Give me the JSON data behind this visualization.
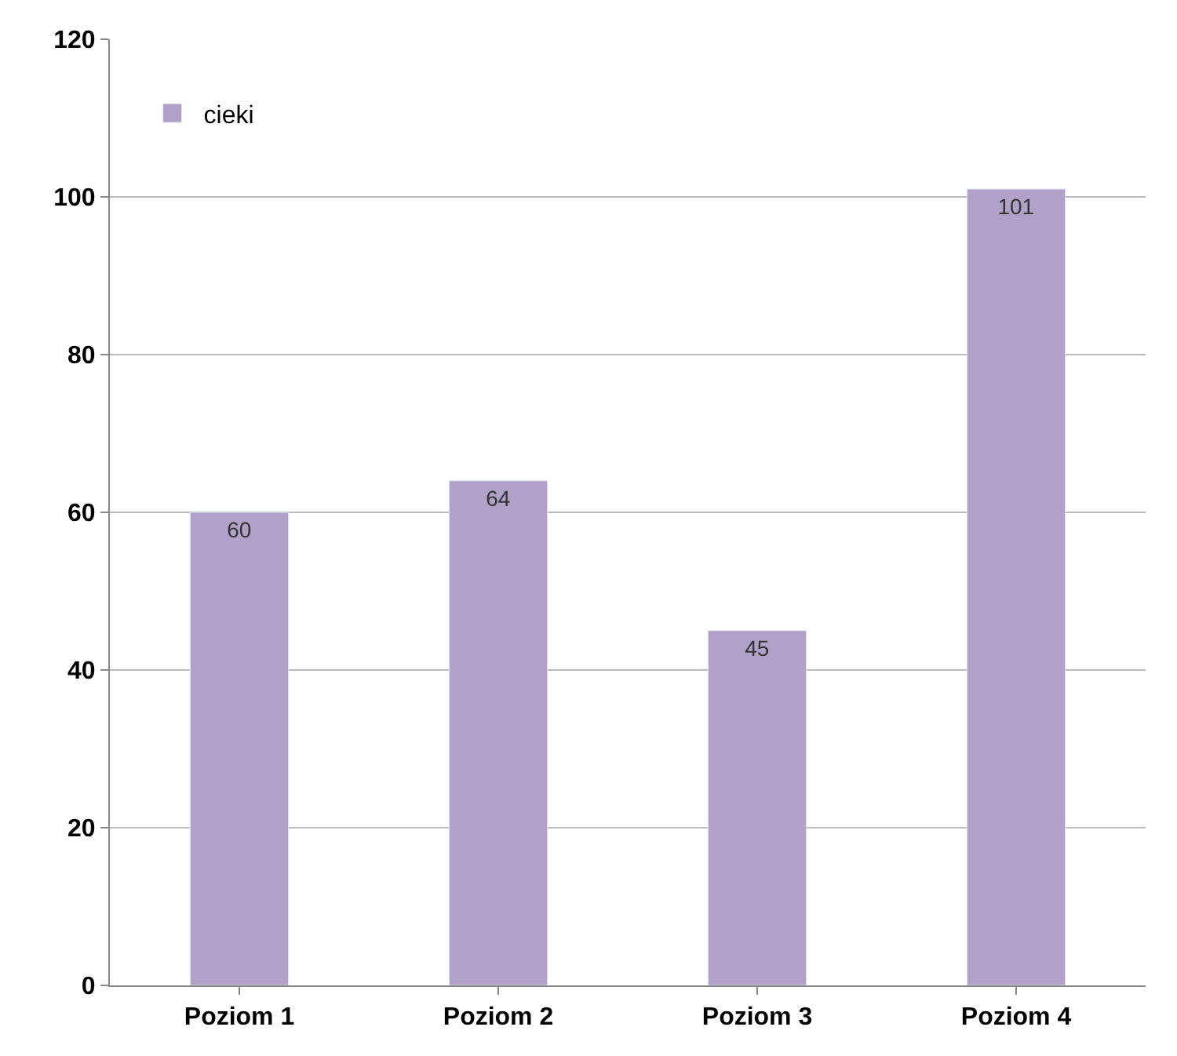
{
  "chart_data": {
    "type": "bar",
    "categories": [
      "Poziom 1",
      "Poziom 2",
      "Poziom 3",
      "Poziom 4"
    ],
    "series": [
      {
        "name": "cieki",
        "color": "#b1a0c7",
        "values": [
          60,
          64,
          45,
          101
        ]
      }
    ],
    "ylim": [
      0,
      120
    ],
    "yticks": [
      0,
      20,
      40,
      60,
      80,
      100,
      120
    ],
    "grid": "y",
    "legend": "top left",
    "data_labels": true
  }
}
